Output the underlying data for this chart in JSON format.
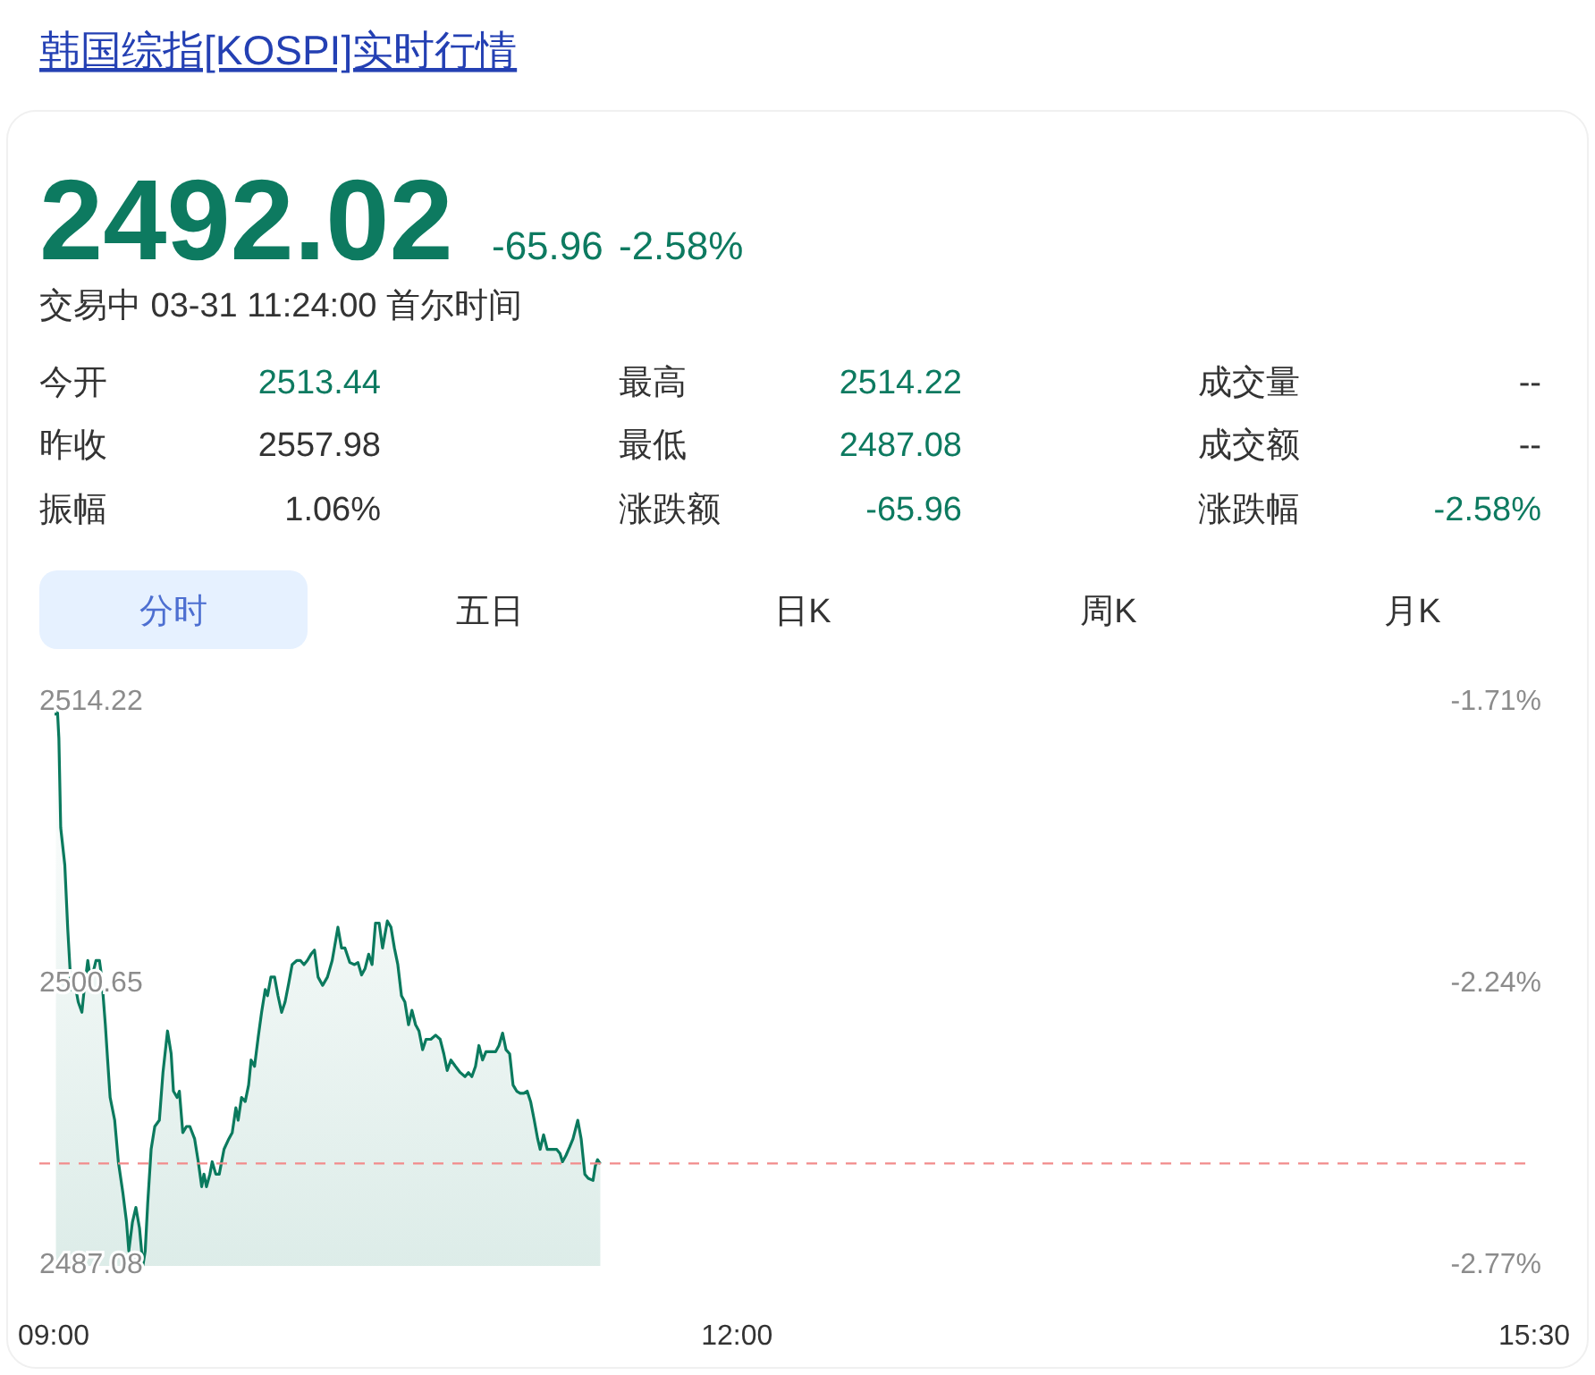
{
  "chart_data": [
    {
      "type": "other",
      "title": "韩国综指[KOSPI]实时行情",
      "annotations": [
        "2492.02",
        "-65.96",
        "-2.58%",
        "交易中 03-31 11:24:00 首尔时间",
        "今开",
        "2513.44",
        "最高",
        "2514.22",
        "成交量",
        "--",
        "昨收",
        "2557.98",
        "最低",
        "2487.08",
        "成交额",
        "--",
        "振幅",
        "1.06%",
        "涨跌额",
        "-65.96",
        "涨跌幅",
        "-2.58%",
        "分时",
        "五日",
        "日K",
        "周K",
        "月K"
      ]
    },
    {
      "type": "area",
      "color": "#0b7a5e",
      "x": [
        9.01,
        9.015,
        9.023,
        9.031,
        9.049,
        9.062,
        9.077,
        9.093,
        9.108,
        9.124,
        9.134,
        9.15,
        9.16,
        9.175,
        9.186,
        9.201,
        9.211,
        9.227,
        9.237,
        9.248,
        9.268,
        9.284,
        9.304,
        9.32,
        9.33,
        9.346,
        9.361,
        9.377,
        9.392,
        9.402,
        9.413,
        9.428,
        9.444,
        9.464,
        9.48,
        9.5,
        9.516,
        9.526,
        9.542,
        9.552,
        9.567,
        9.583,
        9.598,
        9.619,
        9.635,
        9.65,
        9.66,
        9.671,
        9.686,
        9.696,
        9.712,
        9.727,
        9.748,
        9.769,
        9.784,
        9.8,
        9.81,
        9.825,
        9.841,
        9.856,
        9.867,
        9.882,
        9.898,
        9.913,
        9.929,
        9.939,
        9.954,
        9.97,
        9.985,
        10.001,
        10.016,
        10.032,
        10.047,
        10.068,
        10.083,
        10.099,
        10.114,
        10.13,
        10.145,
        10.161,
        10.181,
        10.202,
        10.223,
        10.248,
        10.264,
        10.279,
        10.3,
        10.321,
        10.336,
        10.352,
        10.367,
        10.383,
        10.398,
        10.413,
        10.429,
        10.444,
        10.465,
        10.481,
        10.496,
        10.511,
        10.527,
        10.542,
        10.558,
        10.573,
        10.589,
        10.604,
        10.62,
        10.635,
        10.656,
        10.677,
        10.697,
        10.713,
        10.728,
        10.744,
        10.764,
        10.785,
        10.806,
        10.821,
        10.836,
        10.852,
        10.867,
        10.883,
        10.898,
        10.919,
        10.94,
        10.955,
        10.971,
        10.986,
        11.002,
        11.017,
        11.033,
        11.048,
        11.064,
        11.079,
        11.094,
        11.11,
        11.125,
        11.136,
        11.151,
        11.167,
        11.187,
        11.208,
        11.223,
        11.234,
        11.249,
        11.265,
        11.28,
        11.301,
        11.316,
        11.332,
        11.347,
        11.368,
        11.378,
        11.388,
        11.4
      ],
      "values": [
        2513.6,
        2514.2,
        2512.5,
        2508.2,
        2506.4,
        2503.3,
        2500.4,
        2500.7,
        2499.8,
        2499.3,
        2500.4,
        2501.8,
        2501.0,
        2501.3,
        2501.8,
        2501.8,
        2501.0,
        2498.7,
        2497.0,
        2495.2,
        2494.1,
        2492.1,
        2490.6,
        2489.2,
        2487.8,
        2489.2,
        2489.9,
        2488.9,
        2487.1,
        2487.8,
        2490.1,
        2492.7,
        2493.8,
        2494.1,
        2496.4,
        2498.4,
        2497.3,
        2495.5,
        2495.2,
        2495.5,
        2493.5,
        2493.8,
        2493.8,
        2493.2,
        2492.1,
        2490.9,
        2491.5,
        2490.9,
        2491.5,
        2492.1,
        2491.5,
        2491.5,
        2492.7,
        2493.2,
        2493.5,
        2494.7,
        2494.1,
        2495.2,
        2495.0,
        2495.8,
        2497.0,
        2496.7,
        2498.1,
        2499.3,
        2500.4,
        2500.1,
        2501.0,
        2501.0,
        2500.1,
        2499.3,
        2499.8,
        2500.7,
        2501.6,
        2501.8,
        2501.8,
        2501.6,
        2501.8,
        2502.1,
        2502.3,
        2501.0,
        2500.6,
        2501.0,
        2501.8,
        2503.4,
        2502.4,
        2502.4,
        2501.7,
        2501.6,
        2501.7,
        2501.1,
        2501.4,
        2502.1,
        2501.6,
        2503.6,
        2503.6,
        2502.4,
        2503.7,
        2503.4,
        2502.4,
        2501.6,
        2500.1,
        2499.8,
        2498.7,
        2499.4,
        2498.7,
        2498.4,
        2497.5,
        2498.0,
        2498.0,
        2498.2,
        2498.0,
        2497.3,
        2496.5,
        2497.0,
        2496.7,
        2496.4,
        2496.2,
        2496.4,
        2496.2,
        2496.7,
        2497.7,
        2497.0,
        2497.4,
        2497.4,
        2497.4,
        2497.7,
        2498.3,
        2497.5,
        2497.3,
        2495.8,
        2495.5,
        2495.4,
        2495.4,
        2495.5,
        2495.0,
        2494.1,
        2493.2,
        2492.7,
        2493.4,
        2492.7,
        2492.7,
        2492.7,
        2492.5,
        2492.1,
        2492.4,
        2492.8,
        2493.2,
        2494.1,
        2493.2,
        2491.5,
        2491.3,
        2491.2,
        2491.9,
        2492.2,
        2492.0
      ],
      "xlim": [
        9,
        15.5
      ],
      "xticks": [
        {
          "value": 9,
          "label": "09:00"
        },
        {
          "value": 12,
          "label": "12:00"
        },
        {
          "value": 15.5,
          "label": "15:30"
        }
      ],
      "ylim": [
        2487.08,
        2514.22
      ],
      "yticks": [
        2487.08,
        2500.65,
        2514.22
      ],
      "y2lim": [
        -2.77,
        -1.71
      ],
      "y2ticks": [
        {
          "value": -2.77,
          "label": "-2.77%"
        },
        {
          "value": -2.24,
          "label": "-2.24%"
        },
        {
          "value": -1.71,
          "label": "-1.71%"
        }
      ],
      "ref_lines": [
        {
          "axis": "y",
          "value": 2492.02,
          "color": "#f28b8b",
          "line_style": "dashed"
        }
      ],
      "grid": false
    }
  ]
}
